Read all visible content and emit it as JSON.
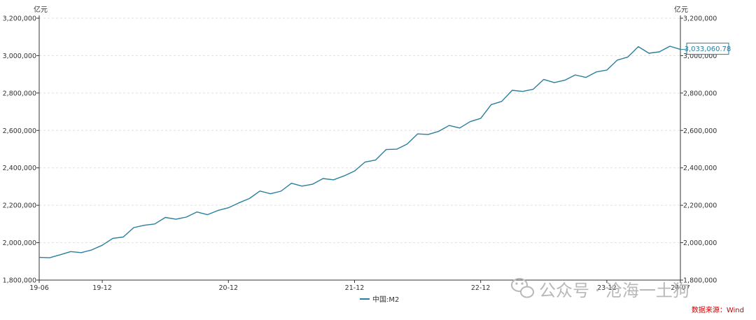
{
  "colors": {
    "series": "#2a7f9e",
    "axis": "#333333",
    "grid": "#e0e0e0",
    "source": "#cc0000",
    "watermark": "#b8b8b8"
  },
  "watermark": {
    "icon": "wechat-icon",
    "text": "公众号 · 沧海一土狗"
  },
  "chart_data": {
    "type": "line",
    "title": "",
    "ylabel_left": "亿元",
    "ylabel_right": "亿元",
    "ylim": [
      1800000,
      3200000
    ],
    "yticks": [
      1800000,
      2000000,
      2200000,
      2400000,
      2600000,
      2800000,
      3000000,
      3200000
    ],
    "ytick_labels": [
      "1,800,000",
      "2,000,000",
      "2,200,000",
      "2,400,000",
      "2,600,000",
      "2,800,000",
      "3,000,000",
      "3,200,000"
    ],
    "xtick_labels": [
      "19-06",
      "19-12",
      "20-12",
      "21-12",
      "22-12",
      "23-12",
      "24-07"
    ],
    "xtick_dates": [
      "2019-06",
      "2019-12",
      "2020-12",
      "2021-12",
      "2022-12",
      "2023-12",
      "2024-07"
    ],
    "xlim": [
      "2019-06",
      "2024-07"
    ],
    "grid": true,
    "legend_position": "bottom",
    "series": [
      {
        "name": "中国:M2",
        "x": [
          "2019-06",
          "2019-07",
          "2019-08",
          "2019-09",
          "2019-10",
          "2019-11",
          "2019-12",
          "2020-01",
          "2020-02",
          "2020-03",
          "2020-04",
          "2020-05",
          "2020-06",
          "2020-07",
          "2020-08",
          "2020-09",
          "2020-10",
          "2020-11",
          "2020-12",
          "2021-01",
          "2021-02",
          "2021-03",
          "2021-04",
          "2021-05",
          "2021-06",
          "2021-07",
          "2021-08",
          "2021-09",
          "2021-10",
          "2021-11",
          "2021-12",
          "2022-01",
          "2022-02",
          "2022-03",
          "2022-04",
          "2022-05",
          "2022-06",
          "2022-07",
          "2022-08",
          "2022-09",
          "2022-10",
          "2022-11",
          "2022-12",
          "2023-01",
          "2023-02",
          "2023-03",
          "2023-04",
          "2023-05",
          "2023-06",
          "2023-07",
          "2023-08",
          "2023-09",
          "2023-10",
          "2023-11",
          "2023-12",
          "2024-01",
          "2024-02",
          "2024-03",
          "2024-04",
          "2024-05",
          "2024-06",
          "2024-07"
        ],
        "values": [
          1921360,
          1919410,
          1935490,
          1952510,
          1946720,
          1961390,
          1986490,
          2023070,
          2030200,
          2080920,
          2093080,
          2100180,
          2134950,
          2125460,
          2136840,
          2164080,
          2149720,
          2172000,
          2186800,
          2213050,
          2236030,
          2276300,
          2261660,
          2275540,
          2317880,
          2302180,
          2312290,
          2342830,
          2336160,
          2356940,
          2382900,
          2431020,
          2441490,
          2497690,
          2499720,
          2527030,
          2581450,
          2578080,
          2595070,
          2626690,
          2612920,
          2647010,
          2664320,
          2738070,
          2755250,
          2814570,
          2808470,
          2820500,
          2873020,
          2855890,
          2868230,
          2896660,
          2883500,
          2912950,
          2922710,
          2976250,
          2992500,
          3047950,
          3012940,
          3020460,
          3050230,
          3033060.78
        ],
        "last_value_label": "3,033,060.78"
      }
    ],
    "source_label": "数据来源：Wind"
  }
}
